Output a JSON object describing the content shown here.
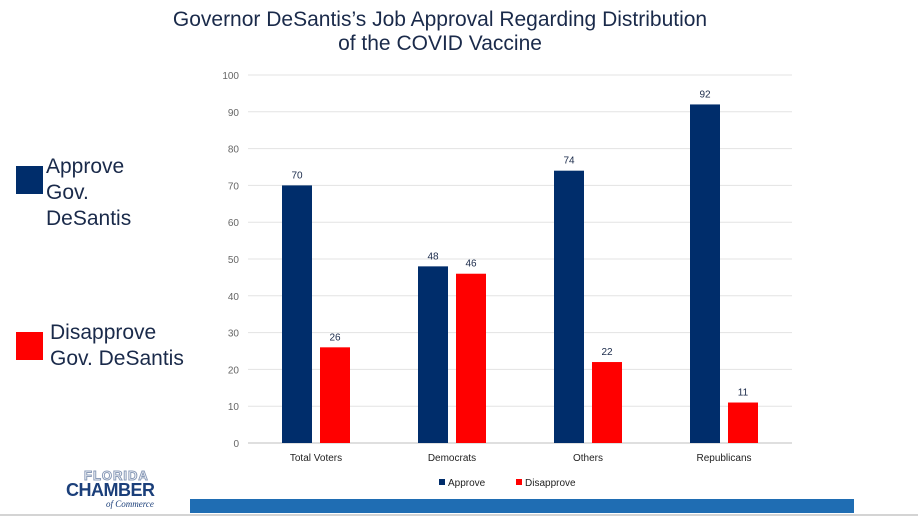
{
  "title_line1": "Governor DeSantis’s Job Approval Regarding Distribution",
  "title_line2": "of the COVID Vaccine",
  "side_legend": {
    "approve": [
      "Approve",
      "Gov.",
      "DeSantis"
    ],
    "disapprove": [
      "Disapprove",
      "Gov. DeSantis"
    ]
  },
  "logo": {
    "line1": "FLORIDA",
    "line2": "CHAMBER",
    "line3": "of Commerce"
  },
  "colors": {
    "approve": "#002d6b",
    "disapprove": "#ff0000",
    "footer_bar": "#1f6db3"
  },
  "chart_data": {
    "type": "bar",
    "categories": [
      "Total Voters",
      "Democrats",
      "Others",
      "Republicans"
    ],
    "series": [
      {
        "name": "Approve",
        "values": [
          70,
          48,
          74,
          92
        ]
      },
      {
        "name": "Disapprove",
        "values": [
          26,
          46,
          22,
          11
        ]
      }
    ],
    "ylim": [
      0,
      100
    ],
    "yticks": [
      0,
      10,
      20,
      30,
      40,
      50,
      60,
      70,
      80,
      90,
      100
    ],
    "grid": true,
    "legend_position": "bottom",
    "data_labels": true
  }
}
